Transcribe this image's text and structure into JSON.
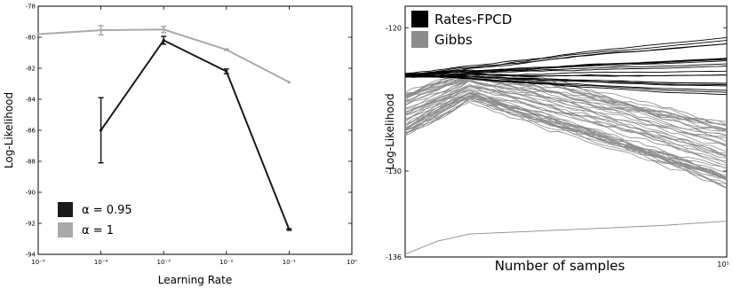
{
  "chart_data": [
    {
      "type": "line",
      "title": "",
      "xlabel": "Learning Rate",
      "ylabel": "Log-Likelihood",
      "x_scale": "log",
      "xlim": [
        1e-05,
        1
      ],
      "ylim": [
        -94,
        -78
      ],
      "x_ticks": [
        {
          "value": 1e-05,
          "label": "10⁻⁵"
        },
        {
          "value": 0.0001,
          "label": "10⁻⁴"
        },
        {
          "value": 0.001,
          "label": "10⁻³"
        },
        {
          "value": 0.01,
          "label": "10⁻²"
        },
        {
          "value": 0.1,
          "label": "10⁻¹"
        },
        {
          "value": 1,
          "label": "10⁰"
        }
      ],
      "y_ticks": [
        {
          "value": -78,
          "label": "-78"
        },
        {
          "value": -80,
          "label": "-80"
        },
        {
          "value": -82,
          "label": "-82"
        },
        {
          "value": -84,
          "label": "-84"
        },
        {
          "value": -86,
          "label": "-86"
        },
        {
          "value": -88,
          "label": "-88"
        },
        {
          "value": -90,
          "label": "-90"
        },
        {
          "value": -92,
          "label": "-92"
        },
        {
          "value": -94,
          "label": "-94"
        }
      ],
      "legend_position": "bottom-left",
      "series": [
        {
          "name": "α = 0.95",
          "color": "#1a1a1a",
          "x": [
            0.0001,
            0.001,
            0.01,
            0.1
          ],
          "y": [
            -86.0,
            -80.2,
            -82.2,
            -92.4
          ],
          "err": [
            2.1,
            0.25,
            0.15,
            0.05
          ]
        },
        {
          "name": "α = 1",
          "color": "#aaaaaa",
          "x": [
            1e-05,
            0.0001,
            0.001,
            0.01,
            0.1
          ],
          "y": [
            -79.8,
            -79.55,
            -79.5,
            -80.8,
            -82.9
          ],
          "err": [
            0,
            0.3,
            0.2,
            0.05,
            0
          ]
        }
      ]
    },
    {
      "type": "line",
      "title": "",
      "xlabel": "Number of samples",
      "ylabel": "Log-Likelihood",
      "xlim": [
        0,
        1
      ],
      "ylim": [
        -136,
        -118.5
      ],
      "x_ticks": [
        {
          "value": 1,
          "label": "10⁵"
        }
      ],
      "y_ticks": [
        {
          "value": -120,
          "label": "-120"
        },
        {
          "value": -130,
          "label": "-130"
        },
        {
          "value": -136,
          "label": "-136"
        }
      ],
      "legend_position": "top-left",
      "series": [
        {
          "name": "Rates-FPCD",
          "color": "#000000",
          "note": "about 20 runs",
          "x": [
            0,
            0.2,
            0.4,
            0.6,
            0.8,
            1.0
          ],
          "y_bands": {
            "upper": [
              -123.2,
              -122.5,
              -121.8,
              -121.0,
              -120.4,
              -119.8
            ],
            "lower": [
              -123.4,
              -123.6,
              -124.0,
              -124.3,
              -124.6,
              -124.8
            ]
          }
        },
        {
          "name": "Gibbs",
          "color": "#8c8c8c",
          "note": "about 50 runs",
          "x": [
            0,
            0.2,
            0.4,
            0.6,
            0.8,
            1.0
          ],
          "y_bands": {
            "upper": [
              -124.5,
              -123.0,
              -123.5,
              -124.5,
              -125.5,
              -126.5
            ],
            "lower": [
              -127.5,
              -125.0,
              -126.5,
              -128.0,
              -129.5,
              -131.0
            ]
          },
          "outlier": {
            "x": [
              0,
              0.1,
              0.2,
              0.4,
              0.6,
              0.8,
              1.0
            ],
            "y": [
              -135.8,
              -134.9,
              -134.4,
              -134.2,
              -134.0,
              -133.8,
              -133.5
            ]
          }
        }
      ]
    }
  ]
}
